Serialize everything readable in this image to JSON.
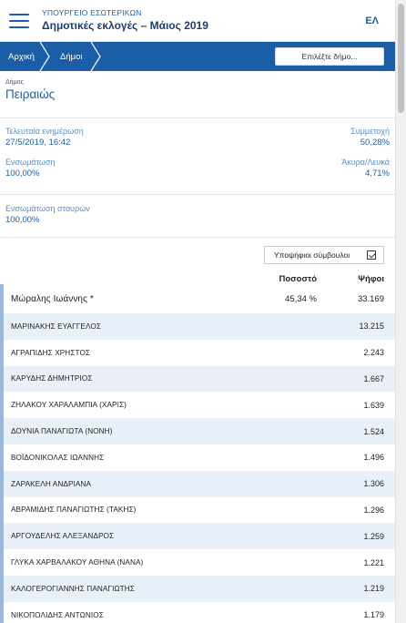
{
  "header": {
    "ministry": "ΥΠΟΥΡΓΕΙΟ ΕΣΩΤΕΡΙΚΩΝ",
    "election": "Δημοτικές εκλογές – Μάιος 2019",
    "lang": "ΕΛ"
  },
  "breadcrumb": {
    "items": [
      "Αρχική",
      "Δήμοι"
    ],
    "select_label": "Επιλέξτε δήμο..."
  },
  "municipality": {
    "label": "Δήμος",
    "name": "Πειραιώς"
  },
  "stats": {
    "last_update_label": "Τελευταία ενημέρωση",
    "last_update_value": "27/5/2019, 16:42",
    "turnout_label": "Συμμετοχή",
    "turnout_value": "50,28%",
    "integration_label": "Ενσωμάτωση",
    "integration_value": "100,00%",
    "invalid_label": "Άκυρα/Λευκά",
    "invalid_value": "4,71%",
    "crosses_label": "Ενσωμάτωση σταυρών",
    "crosses_value": "100,00%"
  },
  "table": {
    "toggle_label": "Υποψήφιοι σύμβουλοι",
    "col_percent": "Ποσοστό",
    "col_votes": "Ψήφοι",
    "leader": {
      "name": "Μώραλης Ιωάννης *",
      "percent": "45,34 %",
      "votes": "33.169"
    },
    "candidates": [
      {
        "name": "ΜΑΡΙΝΑΚΗΣ ΕΥΑΓΓΕΛΟΣ",
        "votes": "13.215"
      },
      {
        "name": "ΑΓΡΑΠΙΔΗΣ ΧΡΗΣΤΟΣ",
        "votes": "2.243"
      },
      {
        "name": "ΚΑΡΥΔΗΣ ΔΗΜΗΤΡΙΟΣ",
        "votes": "1.667"
      },
      {
        "name": "ΖΗΛΑΚΟΥ ΧΑΡΑΛΑΜΠΙΑ (ΧΑΡΙΣ)",
        "votes": "1.639"
      },
      {
        "name": "ΔΟΥΝΙΑ ΠΑΝΑΓΙΩΤΑ (ΝΟΝΗ)",
        "votes": "1.524"
      },
      {
        "name": "ΒΟΪΔΟΝΙΚΟΛΑΣ ΙΩΑΝΝΗΣ",
        "votes": "1.496"
      },
      {
        "name": "ΖΑΡΑΚΕΛΗ ΑΝΔΡΙΑΝΑ",
        "votes": "1.306"
      },
      {
        "name": "ΑΒΡΑΜΙΔΗΣ ΠΑΝΑΓΙΩΤΗΣ (ΤΑΚΗΣ)",
        "votes": "1.296"
      },
      {
        "name": "ΑΡΓΟΥΔΕΛΗΣ ΑΛΕΞΑΝΔΡΟΣ",
        "votes": "1.259"
      },
      {
        "name": "ΓΛΥΚΑ ΧΑΡΒΑΛΑΚΟΥ ΑΘΗΝΑ (ΝΑΝΑ)",
        "votes": "1.221"
      },
      {
        "name": "ΚΑΛΟΓΕΡΟΓΙΑΝΝΗΣ ΠΑΝΑΓΙΩΤΗΣ",
        "votes": "1.219"
      },
      {
        "name": "ΝΙΚΟΠΟΛΙΔΗΣ ΑΝΤΩΝΙΟΣ",
        "votes": "1.179"
      }
    ]
  },
  "colors": {
    "brand_blue": "#1a5ea8",
    "row_alt": "#e9f0f9",
    "accent": "#9ab7de"
  }
}
